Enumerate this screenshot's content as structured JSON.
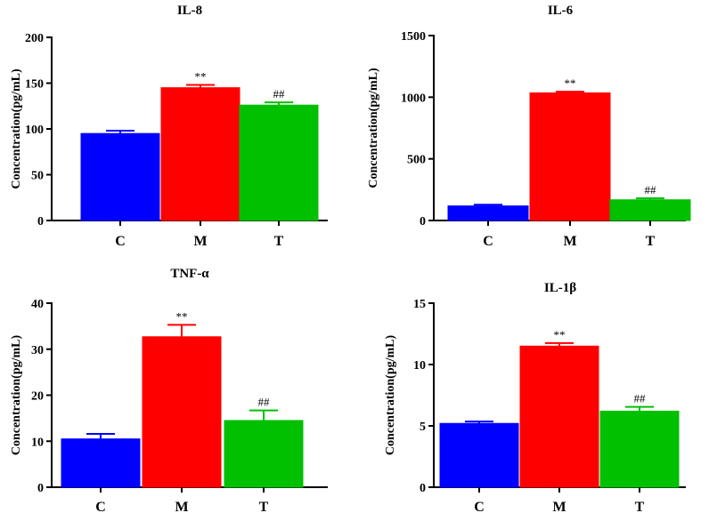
{
  "chart_data": [
    {
      "type": "bar",
      "title": "IL-8",
      "xlabel": "",
      "ylabel": "Concentration(pg/mL)",
      "categories": [
        "C",
        "M",
        "T"
      ],
      "values": [
        95,
        145,
        126
      ],
      "errors": [
        3,
        3,
        3
      ],
      "annotations": [
        "",
        "**",
        "##"
      ],
      "colors": [
        "#0000ff",
        "#ff0000",
        "#00c000"
      ],
      "ylim": [
        0,
        200
      ],
      "yticks": [
        0,
        50,
        100,
        150,
        200
      ]
    },
    {
      "type": "bar",
      "title": "IL-6",
      "xlabel": "",
      "ylabel": "Concentration(pg/mL)",
      "categories": [
        "C",
        "M",
        "T"
      ],
      "values": [
        118,
        1035,
        168
      ],
      "errors": [
        10,
        10,
        12
      ],
      "annotations": [
        "",
        "**",
        "##"
      ],
      "colors": [
        "#0000ff",
        "#ff0000",
        "#00c000"
      ],
      "ylim": [
        0,
        1500
      ],
      "yticks": [
        0,
        500,
        1000,
        1500
      ]
    },
    {
      "type": "bar",
      "title": "TNF-α",
      "xlabel": "",
      "ylabel": "Concentration(pg/mL)",
      "categories": [
        "C",
        "M",
        "T"
      ],
      "values": [
        10.5,
        32.7,
        14.5
      ],
      "errors": [
        1.1,
        2.6,
        2.2
      ],
      "annotations": [
        "",
        "**",
        "##"
      ],
      "colors": [
        "#0000ff",
        "#ff0000",
        "#00c000"
      ],
      "ylim": [
        0,
        40
      ],
      "yticks": [
        0,
        10,
        20,
        30,
        40
      ]
    },
    {
      "type": "bar",
      "title": "IL-1β",
      "xlabel": "",
      "ylabel": "Concentration(pg/mL)",
      "categories": [
        "C",
        "M",
        "T"
      ],
      "values": [
        5.2,
        11.5,
        6.2
      ],
      "errors": [
        0.15,
        0.25,
        0.35
      ],
      "annotations": [
        "",
        "**",
        "##"
      ],
      "colors": [
        "#0000ff",
        "#ff0000",
        "#00c000"
      ],
      "ylim": [
        0,
        15
      ],
      "yticks": [
        0,
        5,
        10,
        15
      ]
    }
  ]
}
